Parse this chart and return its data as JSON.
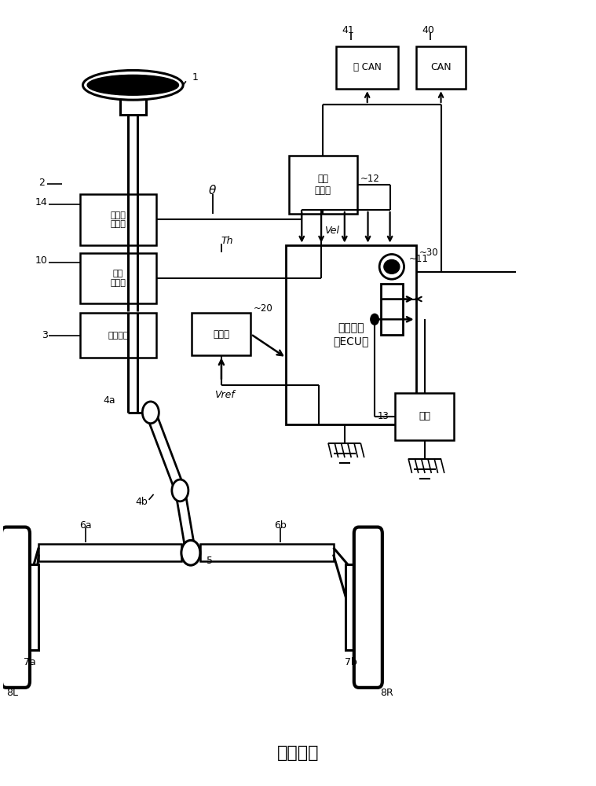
{
  "title": "现有技术",
  "title_fontsize": 16,
  "bg_color": "#ffffff",
  "box_texts": {
    "steering_angle": "转向角\n传感器",
    "torque": "扭矩\n传感器",
    "gear": "减速齿轮",
    "motor": "电动机",
    "ecu": "控制单元\n（ECU）",
    "speed": "车速\n传感器",
    "battery": "电池",
    "can": "CAN",
    "non_can": "非 CAN"
  },
  "signal_labels": {
    "theta": "θ",
    "th": "Th",
    "vel": "Vel",
    "vref": "Vref"
  }
}
